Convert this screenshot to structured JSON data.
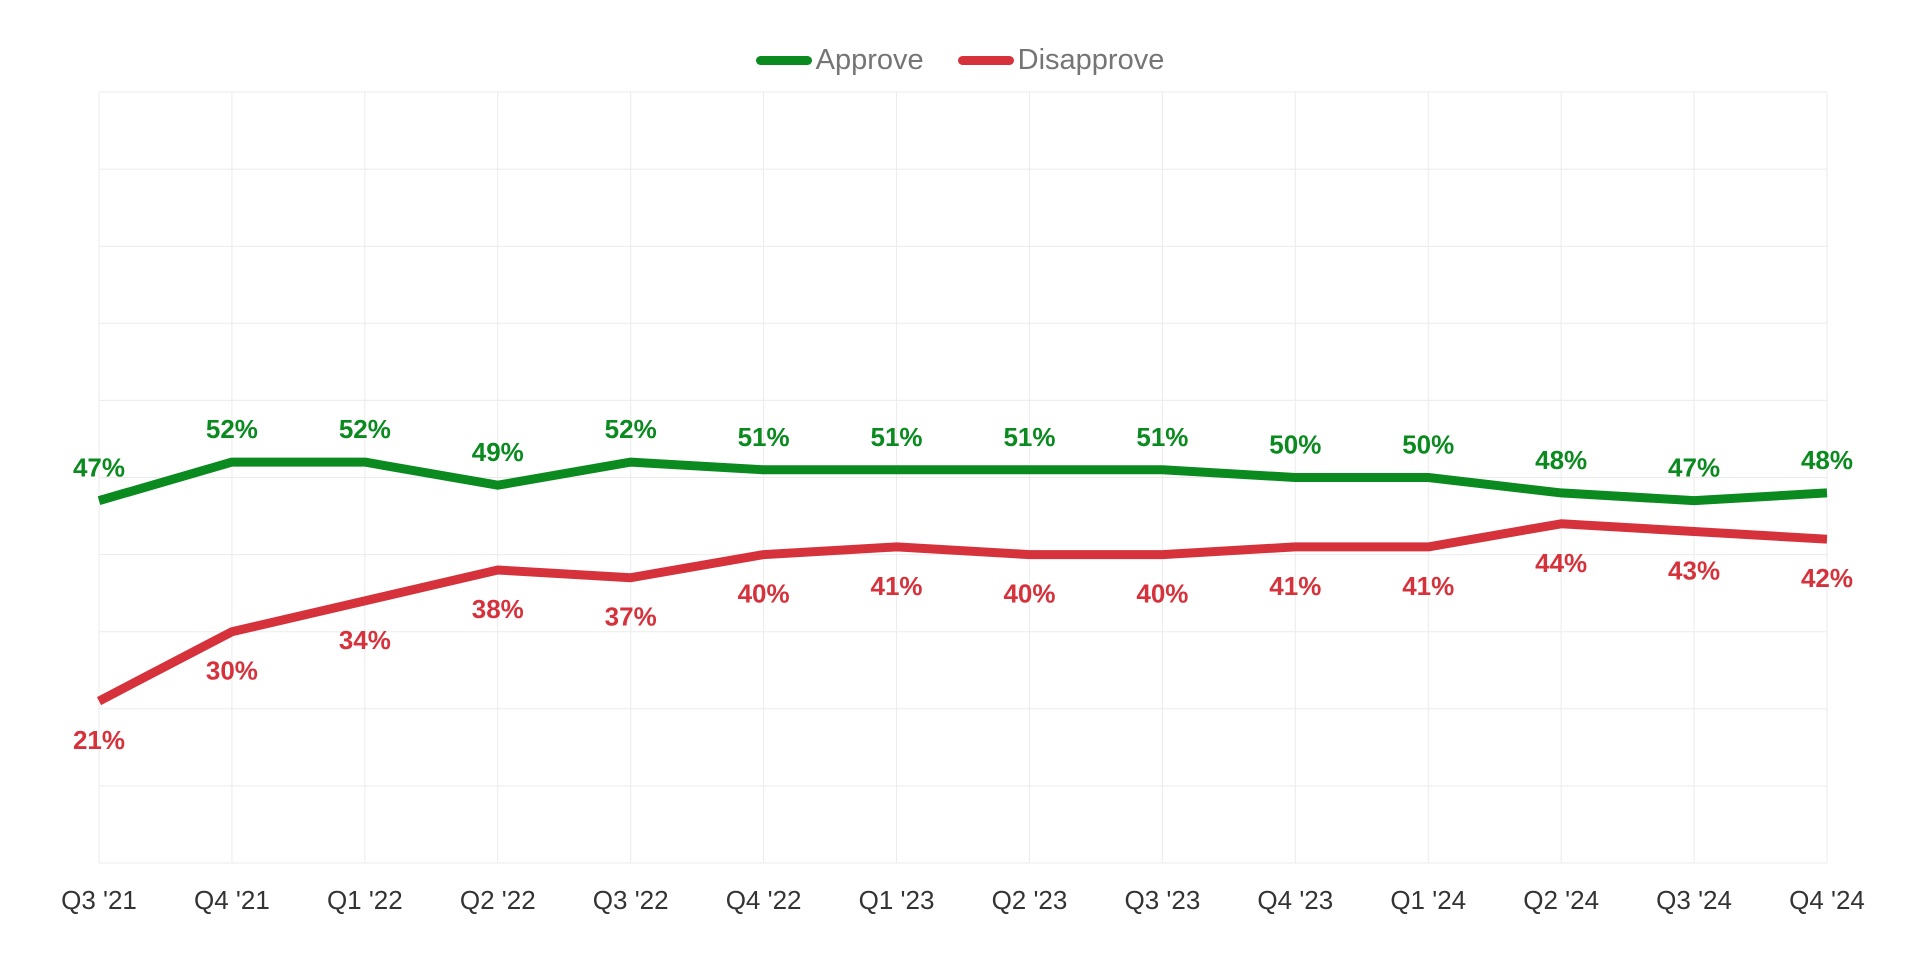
{
  "chart_data": {
    "type": "line",
    "categories": [
      "Q3 '21",
      "Q4 '21",
      "Q1 '22",
      "Q2 '22",
      "Q3 '22",
      "Q4 '22",
      "Q1 '23",
      "Q2 '23",
      "Q3 '23",
      "Q4 '23",
      "Q1 '24",
      "Q2 '24",
      "Q3 '24",
      "Q4 '24"
    ],
    "series": [
      {
        "name": "Approve",
        "color": "#0a8a1f",
        "values": [
          47,
          52,
          52,
          49,
          52,
          51,
          51,
          51,
          51,
          50,
          50,
          48,
          47,
          48
        ],
        "labels": [
          "47%",
          "52%",
          "52%",
          "49%",
          "52%",
          "51%",
          "51%",
          "51%",
          "51%",
          "50%",
          "50%",
          "48%",
          "47%",
          "48%"
        ]
      },
      {
        "name": "Disapprove",
        "color": "#d6323c",
        "values": [
          21,
          30,
          34,
          38,
          37,
          40,
          41,
          40,
          40,
          41,
          41,
          44,
          43,
          42
        ],
        "labels": [
          "21%",
          "30%",
          "34%",
          "38%",
          "37%",
          "40%",
          "41%",
          "40%",
          "40%",
          "41%",
          "41%",
          "44%",
          "43%",
          "42%"
        ]
      }
    ],
    "ylim": [
      0,
      100
    ],
    "grid": true,
    "legend_position": "top-center",
    "title": "",
    "xlabel": "",
    "ylabel": ""
  }
}
